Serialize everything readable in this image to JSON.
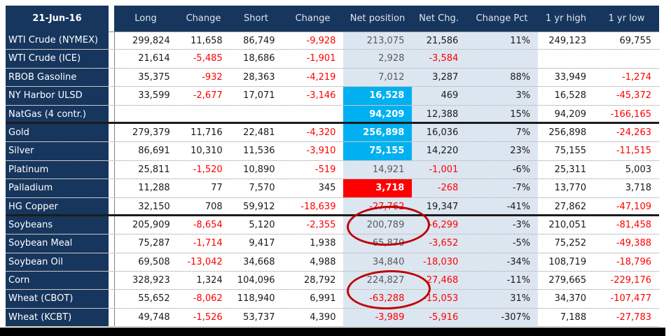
{
  "header": {
    "date": "21-Jun-16",
    "columns": [
      "Long",
      "Change",
      "Short",
      "Change",
      "Net position",
      "Net Chg.",
      "Change Pct",
      "1 yr high",
      "1 yr low"
    ]
  },
  "rows": [
    {
      "label": "WTI Crude (NYMEX)",
      "values": [
        "299,824",
        "11,658",
        "86,749",
        "-9,928",
        "213,075",
        "21,586",
        "11%",
        "249,123",
        "69,755"
      ],
      "net": "plain",
      "section_end": false
    },
    {
      "label": "WTI Crude (ICE)",
      "values": [
        "21,614",
        "-5,485",
        "18,686",
        "-1,901",
        "2,928",
        "-3,584",
        "",
        "",
        ""
      ],
      "net": "plain",
      "section_end": false
    },
    {
      "label": "RBOB Gasoline",
      "values": [
        "35,375",
        "-932",
        "28,363",
        "-4,219",
        "7,012",
        "3,287",
        "88%",
        "33,949",
        "-1,274"
      ],
      "net": "plain",
      "section_end": false
    },
    {
      "label": "NY Harbor ULSD",
      "values": [
        "33,599",
        "-2,677",
        "17,071",
        "-3,146",
        "16,528",
        "469",
        "3%",
        "16,528",
        "-45,372"
      ],
      "net": "cyan",
      "section_end": false
    },
    {
      "label": "NatGas (4 contr.)",
      "values": [
        "",
        "",
        "",
        "",
        "94,209",
        "12,388",
        "15%",
        "94,209",
        "-166,165"
      ],
      "net": "cyan",
      "section_end": true
    },
    {
      "label": "Gold",
      "values": [
        "279,379",
        "11,716",
        "22,481",
        "-4,320",
        "256,898",
        "16,036",
        "7%",
        "256,898",
        "-24,263"
      ],
      "net": "cyan",
      "section_end": false
    },
    {
      "label": "Silver",
      "values": [
        "86,691",
        "10,310",
        "11,536",
        "-3,910",
        "75,155",
        "14,220",
        "23%",
        "75,155",
        "-11,515"
      ],
      "net": "cyan",
      "section_end": false
    },
    {
      "label": "Platinum",
      "values": [
        "25,811",
        "-1,520",
        "10,890",
        "-519",
        "14,921",
        "-1,001",
        "-6%",
        "25,311",
        "5,003"
      ],
      "net": "plain",
      "section_end": false
    },
    {
      "label": "Palladium",
      "values": [
        "11,288",
        "77",
        "7,570",
        "345",
        "3,718",
        "-268",
        "-7%",
        "13,770",
        "3,718"
      ],
      "net": "red",
      "section_end": false
    },
    {
      "label": "HG Copper",
      "values": [
        "32,150",
        "708",
        "59,912",
        "-18,639",
        "-27,762",
        "19,347",
        "-41%",
        "27,862",
        "-47,109"
      ],
      "net": "plain",
      "section_end": true
    },
    {
      "label": "Soybeans",
      "values": [
        "205,909",
        "-8,654",
        "5,120",
        "-2,355",
        "200,789",
        "-6,299",
        "-3%",
        "210,051",
        "-81,458"
      ],
      "net": "plain",
      "section_end": false
    },
    {
      "label": "Soybean Meal",
      "values": [
        "75,287",
        "-1,714",
        "9,417",
        "1,938",
        "65,870",
        "-3,652",
        "-5%",
        "75,252",
        "-49,388"
      ],
      "net": "plain",
      "section_end": false
    },
    {
      "label": "Soybean Oil",
      "values": [
        "69,508",
        "-13,042",
        "34,668",
        "4,988",
        "34,840",
        "-18,030",
        "-34%",
        "108,719",
        "-18,796"
      ],
      "net": "plain",
      "section_end": false
    },
    {
      "label": "Corn",
      "values": [
        "328,923",
        "1,324",
        "104,096",
        "28,792",
        "224,827",
        "-27,468",
        "-11%",
        "279,665",
        "-229,176"
      ],
      "net": "plain",
      "section_end": false
    },
    {
      "label": "Wheat (CBOT)",
      "values": [
        "55,652",
        "-8,062",
        "118,940",
        "6,991",
        "-63,288",
        "-15,053",
        "31%",
        "34,370",
        "-107,477"
      ],
      "net": "plain",
      "section_end": false
    },
    {
      "label": "Wheat (KCBT)",
      "values": [
        "49,748",
        "-1,526",
        "53,737",
        "4,390",
        "-3,989",
        "-5,916",
        "-307%",
        "7,188",
        "-27,783"
      ],
      "net": "plain",
      "section_end": false
    }
  ],
  "formatting": {
    "neg_red_columns": [
      1,
      3,
      4,
      5,
      8
    ],
    "net_position_column": 4,
    "band_columns": [
      4,
      5,
      6
    ]
  },
  "colors": {
    "header_bg": "#17365d",
    "header_text": "#dbe5f1",
    "label_text": "#ffffff",
    "band_bg": "#dce6f1",
    "highlight_cyan": "#00b0f0",
    "highlight_red": "#ff0000",
    "negative_text": "#ff0000",
    "net_plain_text": "#595959",
    "annotation_red": "#c00000",
    "bottom_bar": "#000000"
  },
  "annotations": [
    {
      "shape": "ellipse",
      "around": "Soybeans Net position 200,789"
    },
    {
      "shape": "ellipse",
      "around": "Corn Net position 224,827"
    }
  ]
}
